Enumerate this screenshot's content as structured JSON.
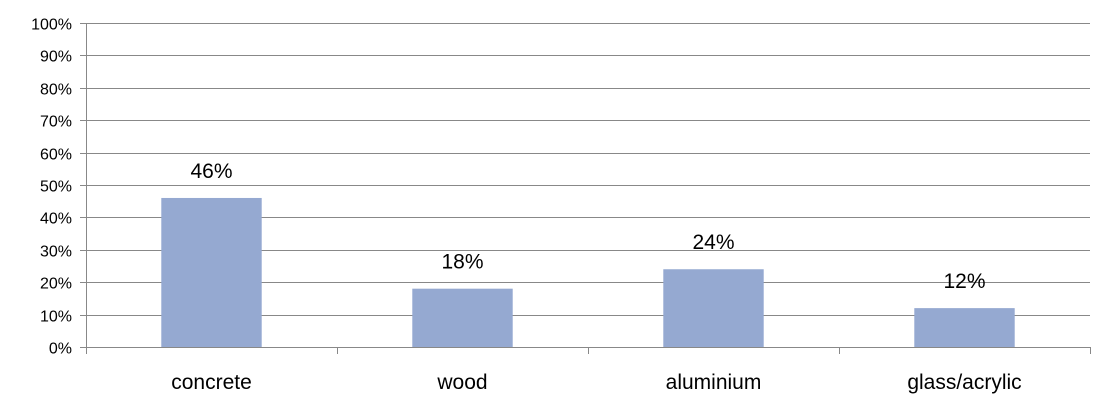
{
  "chart_data": {
    "type": "bar",
    "categories": [
      "concrete",
      "wood",
      "aluminium",
      "glass/acrylic"
    ],
    "values": [
      46,
      18,
      24,
      12
    ],
    "data_labels": [
      "46%",
      "18%",
      "24%",
      "12%"
    ],
    "ylim": [
      0,
      100
    ],
    "ytick_values": [
      0,
      10,
      20,
      30,
      40,
      50,
      60,
      70,
      80,
      90,
      100
    ],
    "ytick_labels": [
      "0%",
      "10%",
      "20%",
      "30%",
      "40%",
      "50%",
      "60%",
      "70%",
      "80%",
      "90%",
      "100%"
    ],
    "grid": true,
    "legend": "none",
    "colors": {
      "bar": "#95a9d1",
      "grid": "#888888",
      "axis": "#888888"
    }
  }
}
